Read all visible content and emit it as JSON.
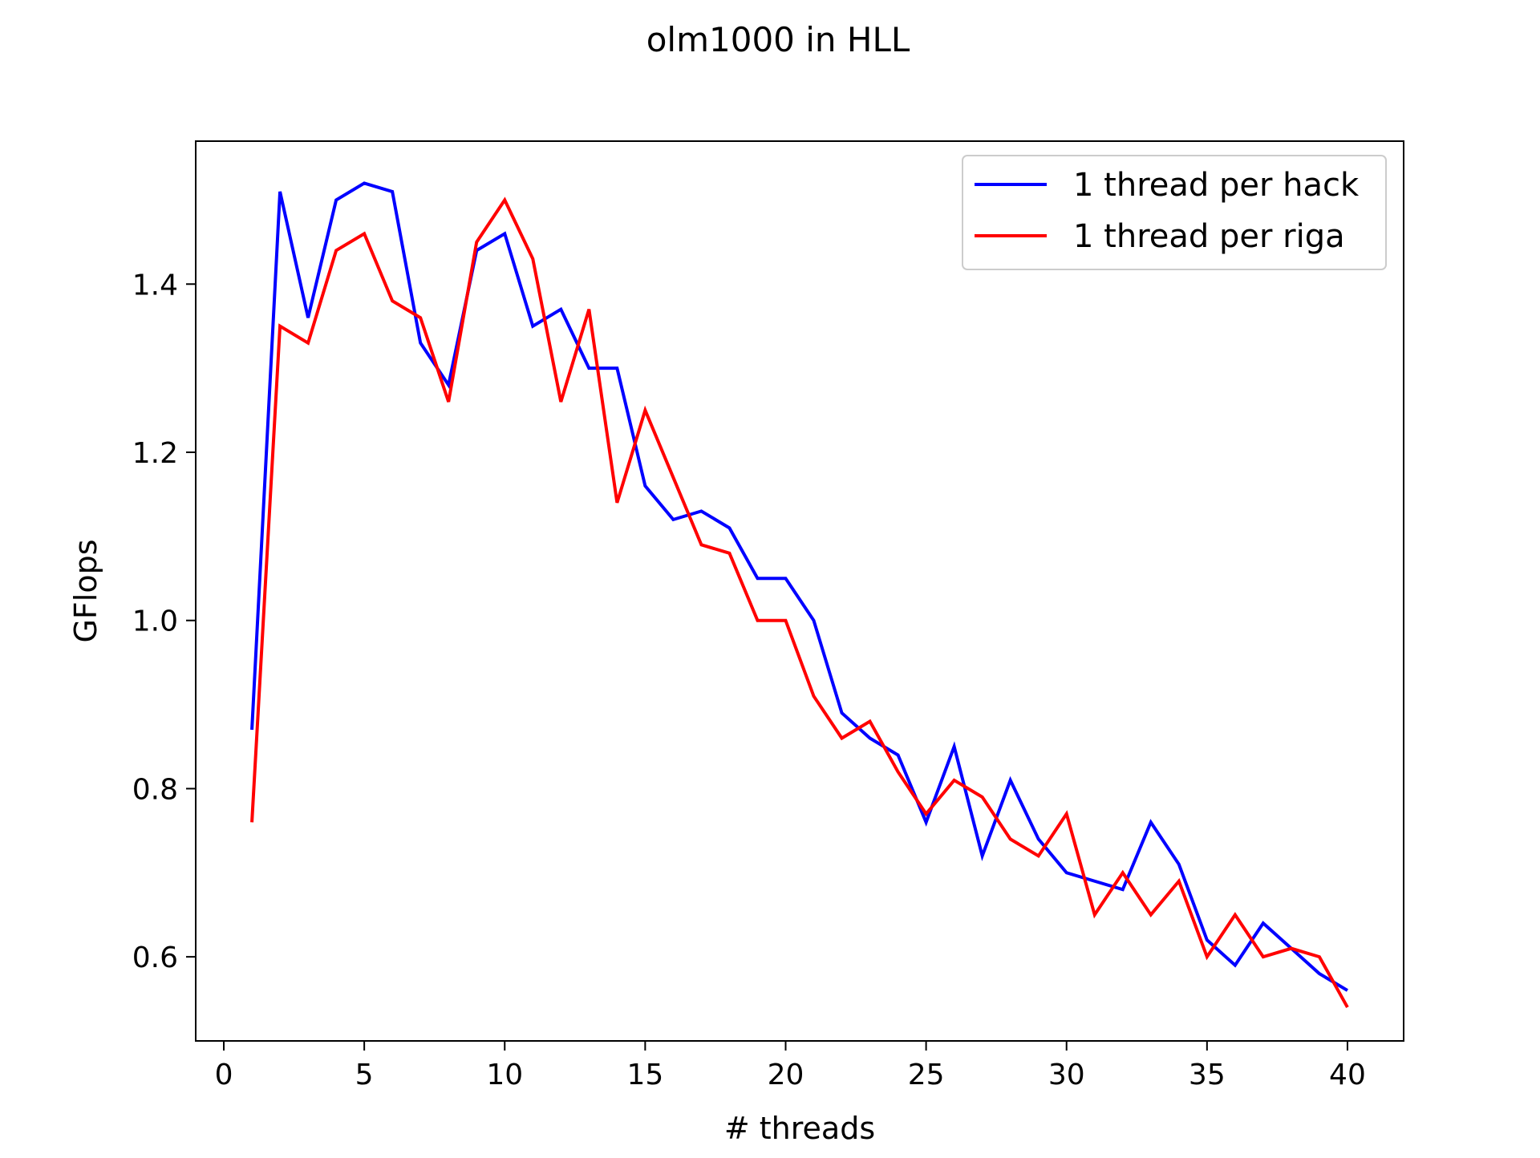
{
  "chart_data": {
    "type": "line",
    "title": "olm1000 in HLL",
    "xlabel": "# threads",
    "ylabel": "GFlops",
    "xlim": [
      -1,
      42
    ],
    "ylim": [
      0.5,
      1.57
    ],
    "x_ticks": [
      0,
      5,
      10,
      15,
      20,
      25,
      30,
      35,
      40
    ],
    "x_tick_labels": [
      "0",
      "5",
      "10",
      "15",
      "20",
      "25",
      "30",
      "35",
      "40"
    ],
    "y_ticks": [
      0.6,
      0.8,
      1.0,
      1.2,
      1.4
    ],
    "y_tick_labels": [
      "0.6",
      "0.8",
      "1.0",
      "1.2",
      "1.4"
    ],
    "grid": false,
    "legend_position": "top-right",
    "x": [
      1,
      2,
      3,
      4,
      5,
      6,
      7,
      8,
      9,
      10,
      11,
      12,
      13,
      14,
      15,
      16,
      17,
      18,
      19,
      20,
      21,
      22,
      23,
      24,
      25,
      26,
      27,
      28,
      29,
      30,
      31,
      32,
      33,
      34,
      35,
      36,
      37,
      38,
      39,
      40
    ],
    "series": [
      {
        "name": "1 thread per hack",
        "color": "#0000ff",
        "values": [
          0.87,
          1.51,
          1.36,
          1.5,
          1.52,
          1.51,
          1.33,
          1.28,
          1.44,
          1.46,
          1.35,
          1.37,
          1.3,
          1.3,
          1.16,
          1.12,
          1.13,
          1.11,
          1.05,
          1.05,
          1.0,
          0.89,
          0.86,
          0.84,
          0.76,
          0.85,
          0.72,
          0.81,
          0.74,
          0.7,
          0.69,
          0.68,
          0.76,
          0.71,
          0.62,
          0.59,
          0.64,
          0.61,
          0.58,
          0.56
        ]
      },
      {
        "name": "1 thread per riga",
        "color": "#ff0000",
        "values": [
          0.76,
          1.35,
          1.33,
          1.44,
          1.46,
          1.38,
          1.36,
          1.26,
          1.45,
          1.5,
          1.43,
          1.26,
          1.37,
          1.14,
          1.25,
          1.17,
          1.09,
          1.08,
          1.0,
          1.0,
          0.91,
          0.86,
          0.88,
          0.82,
          0.77,
          0.81,
          0.79,
          0.74,
          0.72,
          0.77,
          0.65,
          0.7,
          0.65,
          0.69,
          0.6,
          0.65,
          0.6,
          0.61,
          0.6,
          0.54
        ]
      }
    ]
  }
}
